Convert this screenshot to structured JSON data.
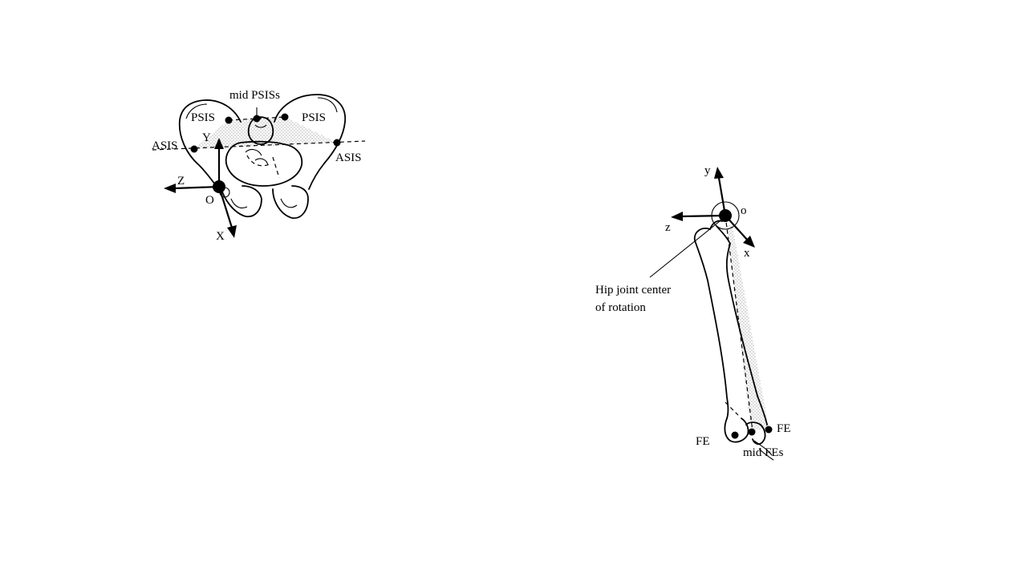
{
  "pelvis": {
    "labels": {
      "mid_psis": "mid  PSISs",
      "psis_left": "PSIS",
      "psis_right": "PSIS",
      "asis_left": "ASIS",
      "asis_right": "ASIS",
      "axis_y": "Y",
      "axis_z": "Z",
      "axis_x": "X",
      "origin": "O"
    }
  },
  "femur": {
    "labels": {
      "axis_y": "y",
      "axis_z": "z",
      "axis_x": "x",
      "origin": "o",
      "hip_center_line1": "Hip joint center",
      "hip_center_line2": "of rotation",
      "fe_left": "FE",
      "fe_right": "FE",
      "mid_fes": "mid FEs"
    }
  }
}
